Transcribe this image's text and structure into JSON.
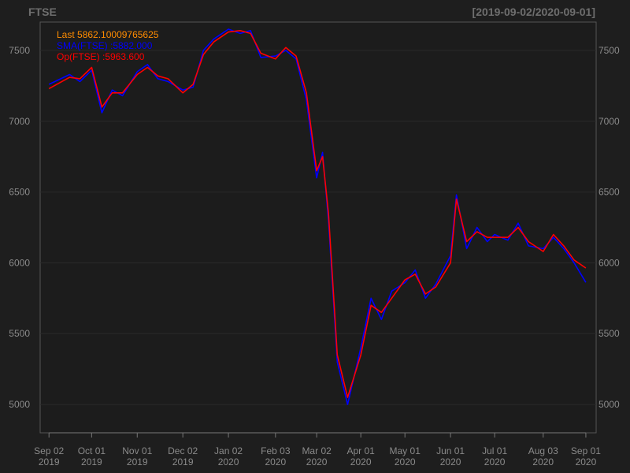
{
  "chart_data": {
    "type": "line",
    "title": "FTSE",
    "date_range": "[2019-09-02/2020-09-01]",
    "legend": [
      {
        "text": "Last 5862.10009765625",
        "color": "#ff8c00"
      },
      {
        "text": "SMA(FTSE) :5882.000",
        "color": "#0000ff"
      },
      {
        "text": "Op(FTSE) :5963.600",
        "color": "#ff0000"
      }
    ],
    "x_ticks": [
      {
        "line1": "Sep 02",
        "line2": "2019",
        "date": "2019-09-02"
      },
      {
        "line1": "Oct 01",
        "line2": "2019",
        "date": "2019-10-01"
      },
      {
        "line1": "Nov 01",
        "line2": "2019",
        "date": "2019-11-01"
      },
      {
        "line1": "Dec 02",
        "line2": "2019",
        "date": "2019-12-02"
      },
      {
        "line1": "Jan 02",
        "line2": "2020",
        "date": "2020-01-02"
      },
      {
        "line1": "Feb 03",
        "line2": "2020",
        "date": "2020-02-03"
      },
      {
        "line1": "Mar 02",
        "line2": "2020",
        "date": "2020-03-02"
      },
      {
        "line1": "Apr 01",
        "line2": "2020",
        "date": "2020-04-01"
      },
      {
        "line1": "May 01",
        "line2": "2020",
        "date": "2020-05-01"
      },
      {
        "line1": "Jun 01",
        "line2": "2020",
        "date": "2020-06-01"
      },
      {
        "line1": "Jul 01",
        "line2": "2020",
        "date": "2020-07-01"
      },
      {
        "line1": "Aug 03",
        "line2": "2020",
        "date": "2020-08-03"
      },
      {
        "line1": "Sep 01",
        "line2": "2020",
        "date": "2020-09-01"
      }
    ],
    "y_ticks": [
      5000,
      5500,
      6000,
      6500,
      7000,
      7500
    ],
    "ylim": [
      4800,
      7700
    ],
    "xlim": [
      "2019-08-27",
      "2020-09-08"
    ],
    "grid": true,
    "series": [
      {
        "name": "Last",
        "color": "#0000ff",
        "x": [
          "2019-09-02",
          "2019-09-16",
          "2019-09-23",
          "2019-10-01",
          "2019-10-08",
          "2019-10-15",
          "2019-10-22",
          "2019-11-01",
          "2019-11-08",
          "2019-11-15",
          "2019-11-22",
          "2019-12-02",
          "2019-12-09",
          "2019-12-16",
          "2019-12-23",
          "2020-01-02",
          "2020-01-10",
          "2020-01-17",
          "2020-01-24",
          "2020-02-03",
          "2020-02-10",
          "2020-02-17",
          "2020-02-24",
          "2020-03-02",
          "2020-03-06",
          "2020-03-10",
          "2020-03-16",
          "2020-03-23",
          "2020-04-01",
          "2020-04-08",
          "2020-04-15",
          "2020-04-22",
          "2020-05-01",
          "2020-05-08",
          "2020-05-15",
          "2020-05-22",
          "2020-06-01",
          "2020-06-05",
          "2020-06-12",
          "2020-06-19",
          "2020-06-26",
          "2020-07-01",
          "2020-07-10",
          "2020-07-17",
          "2020-07-24",
          "2020-08-03",
          "2020-08-10",
          "2020-08-17",
          "2020-08-24",
          "2020-09-01"
        ],
        "values": [
          7260,
          7330,
          7280,
          7360,
          7060,
          7220,
          7180,
          7350,
          7400,
          7300,
          7280,
          7220,
          7240,
          7500,
          7580,
          7650,
          7620,
          7640,
          7450,
          7460,
          7500,
          7440,
          7150,
          6600,
          6780,
          6300,
          5300,
          5000,
          5400,
          5750,
          5600,
          5800,
          5860,
          5950,
          5750,
          5850,
          6050,
          6480,
          6100,
          6250,
          6150,
          6200,
          6160,
          6280,
          6120,
          6100,
          6180,
          6100,
          6000,
          5862
        ]
      },
      {
        "name": "Op",
        "color": "#ff0000",
        "x": [
          "2019-09-02",
          "2019-09-16",
          "2019-09-23",
          "2019-10-01",
          "2019-10-08",
          "2019-10-15",
          "2019-10-22",
          "2019-11-01",
          "2019-11-08",
          "2019-11-15",
          "2019-11-22",
          "2019-12-02",
          "2019-12-09",
          "2019-12-16",
          "2019-12-23",
          "2020-01-02",
          "2020-01-10",
          "2020-01-17",
          "2020-01-24",
          "2020-02-03",
          "2020-02-10",
          "2020-02-17",
          "2020-02-24",
          "2020-03-02",
          "2020-03-06",
          "2020-03-10",
          "2020-03-16",
          "2020-03-23",
          "2020-04-01",
          "2020-04-08",
          "2020-04-15",
          "2020-04-22",
          "2020-05-01",
          "2020-05-08",
          "2020-05-15",
          "2020-05-22",
          "2020-06-01",
          "2020-06-05",
          "2020-06-12",
          "2020-06-19",
          "2020-06-26",
          "2020-07-01",
          "2020-07-10",
          "2020-07-17",
          "2020-07-24",
          "2020-08-03",
          "2020-08-10",
          "2020-08-17",
          "2020-08-24",
          "2020-09-01"
        ],
        "values": [
          7230,
          7310,
          7300,
          7380,
          7100,
          7200,
          7200,
          7330,
          7380,
          7320,
          7300,
          7200,
          7260,
          7470,
          7560,
          7630,
          7640,
          7620,
          7480,
          7440,
          7520,
          7460,
          7200,
          6650,
          6750,
          6350,
          5350,
          5050,
          5350,
          5700,
          5650,
          5750,
          5880,
          5920,
          5780,
          5830,
          6000,
          6450,
          6150,
          6220,
          6180,
          6180,
          6180,
          6250,
          6150,
          6080,
          6200,
          6120,
          6020,
          5963.6
        ]
      }
    ]
  }
}
